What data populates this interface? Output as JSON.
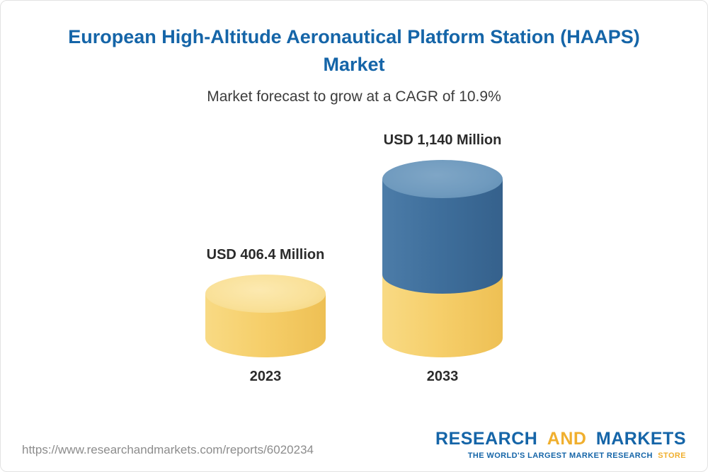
{
  "page": {
    "title": "European High-Altitude Aeronautical Platform Station (HAAPS) Market",
    "subtitle": "Market forecast to grow at a CAGR of 10.9%"
  },
  "chart_data": {
    "type": "bar",
    "variant": "3d-cylinder",
    "title": "European High-Altitude Aeronautical Platform Station (HAAPS) Market",
    "subtitle": "Market forecast to grow at a CAGR of 10.9%",
    "cagr_pct": 10.9,
    "categories": [
      "2023",
      "2033"
    ],
    "values": [
      406.4,
      1140
    ],
    "unit": "USD Million",
    "value_labels": [
      "USD 406.4 Million",
      "USD 1,140 Million"
    ],
    "legend": "none",
    "grid": false,
    "axes": "none",
    "colors": {
      "bar_2023": "#F6CF6B",
      "bar_2033_growth_segment": "#3F6F9C",
      "bar_2033_base_segment": "#F6CF6B",
      "title_text": "#1565A8",
      "label_text": "#2B2B2B"
    },
    "notes": "2033 cylinder is stacked: yellow base segment equals the 2023 value, blue segment is the growth to 1140."
  },
  "footer": {
    "url": "https://www.researchandmarkets.com/reports/6020234",
    "logo": {
      "word1": "RESEARCH",
      "word2": "AND",
      "word3": "MARKETS",
      "tagline_main": "THE WORLD'S LARGEST MARKET RESEARCH",
      "tagline_accent": "STORE",
      "blue": "#1565A8",
      "gold": "#F0AF2E"
    }
  }
}
